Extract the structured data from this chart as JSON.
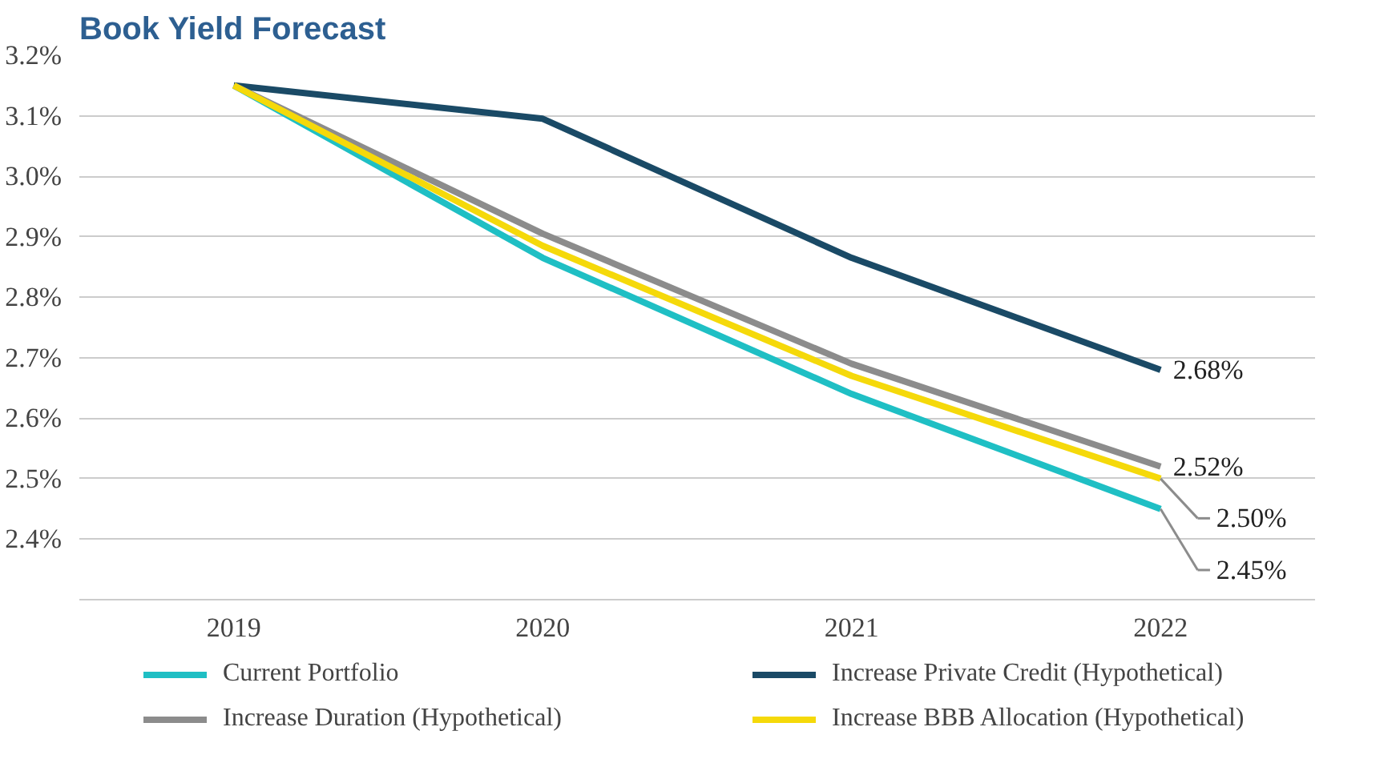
{
  "chart_data": {
    "type": "line",
    "title": "Book Yield Forecast",
    "categories": [
      "2019",
      "2020",
      "2021",
      "2022"
    ],
    "series": [
      {
        "name": "Current Portfolio",
        "color": "#1fbfc4",
        "values": [
          3.15,
          2.865,
          2.64,
          2.45
        ],
        "value_labels": [
          null,
          null,
          null,
          "2.45%"
        ]
      },
      {
        "name": "Increase Private Credit (Hypothetical)",
        "color": "#1a4a66",
        "values": [
          3.15,
          3.095,
          2.865,
          2.68
        ],
        "value_labels": [
          null,
          null,
          null,
          "2.68%"
        ]
      },
      {
        "name": "Increase Duration (Hypothetical)",
        "color": "#8c8c8c",
        "values": [
          3.15,
          2.905,
          2.69,
          2.52
        ],
        "value_labels": [
          null,
          null,
          null,
          "2.52%"
        ]
      },
      {
        "name": "Increase BBB Allocation (Hypothetical)",
        "color": "#f5d90a",
        "values": [
          3.15,
          2.885,
          2.67,
          2.5
        ],
        "value_labels": [
          null,
          null,
          null,
          "2.50%"
        ]
      }
    ],
    "ylim": [
      2.3,
      3.2
    ],
    "yticks": [
      {
        "value": 2.4,
        "label": "2.4%"
      },
      {
        "value": 2.5,
        "label": "2.5%"
      },
      {
        "value": 2.6,
        "label": "2.6%"
      },
      {
        "value": 2.7,
        "label": "2.7%"
      },
      {
        "value": 2.8,
        "label": "2.8%"
      },
      {
        "value": 2.9,
        "label": "2.9%"
      },
      {
        "value": 3.0,
        "label": "3.0%"
      },
      {
        "value": 3.1,
        "label": "3.1%"
      },
      {
        "value": 3.2,
        "label": "3.2%"
      }
    ],
    "grid": "y",
    "legend": "bottom",
    "marker": "none",
    "line_style": "solid"
  }
}
